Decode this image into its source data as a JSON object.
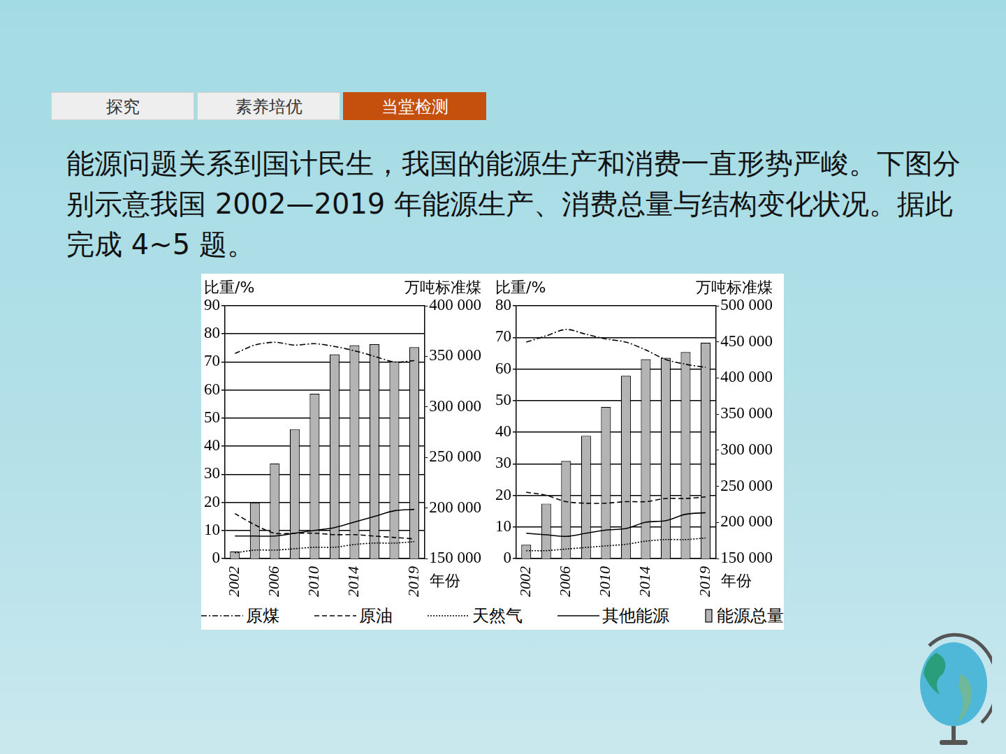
{
  "header": {
    "tabs": [
      "探究",
      "素养培优",
      "当堂检测"
    ],
    "active_tab": "当堂检测"
  },
  "question": "能源问题关系到国计民生，我国的能源生产和消费一直形势严峻。下图分别示意我国 2002—2019 年能源生产、消费总量与结构变化状况。据此完成 4~5 题。",
  "chart_data": [
    {
      "type": "bar",
      "categories": [
        "2002",
        null,
        "2006",
        null,
        "2010",
        null,
        "2014",
        null,
        null,
        "2019"
      ],
      "xlabel": "年份",
      "ylabel": "比重/%",
      "y2label": "万吨标准煤",
      "ylim": [
        0,
        90
      ],
      "yticks": [
        0,
        10,
        20,
        30,
        40,
        50,
        60,
        70,
        80,
        90
      ],
      "y2lim": [
        150000,
        400000
      ],
      "y2ticks": [
        {
          "value": 150000,
          "label": "150 000"
        },
        {
          "value": 200000,
          "label": "200 000"
        },
        {
          "value": 250000,
          "label": "250 000"
        },
        {
          "value": 300000,
          "label": "300 000"
        },
        {
          "value": 350000,
          "label": "350 000"
        },
        {
          "value": 400000,
          "label": "400 000"
        }
      ],
      "grid": true,
      "legend": "bottom",
      "series": [
        {
          "name": "原煤",
          "type": "line",
          "color": "#000000",
          "line_style": "dashdot",
          "marker": "none",
          "axis": "y",
          "values": [
            73,
            76,
            77,
            76,
            76.5,
            75.5,
            74,
            72,
            70,
            70.5
          ]
        },
        {
          "name": "原油",
          "type": "line",
          "color": "#000000",
          "line_style": "dashed",
          "marker": "none",
          "axis": "y",
          "values": [
            16,
            12,
            9,
            9,
            9,
            8.5,
            8.5,
            8,
            7.5,
            7
          ]
        },
        {
          "name": "天然气",
          "type": "line",
          "color": "#000000",
          "line_style": "dotted",
          "marker": "none",
          "axis": "y",
          "values": [
            2,
            3,
            3,
            3.5,
            4,
            4,
            5,
            5.5,
            5.5,
            6
          ]
        },
        {
          "name": "其他能源",
          "type": "line",
          "color": "#000000",
          "line_style": "solid",
          "marker": "none",
          "axis": "y",
          "values": [
            8,
            8,
            8,
            9,
            10,
            11,
            13,
            15,
            17,
            17.5
          ]
        },
        {
          "name": "能源总量",
          "type": "bar",
          "color": "#b4b4b4",
          "axis": "y2",
          "values": [
            157000,
            205000,
            244000,
            278000,
            313000,
            352000,
            361000,
            362000,
            345000,
            359000
          ]
        }
      ]
    },
    {
      "type": "bar",
      "categories": [
        "2002",
        null,
        "2006",
        null,
        "2010",
        null,
        "2014",
        null,
        null,
        "2019"
      ],
      "xlabel": "年份",
      "ylabel": "比重/%",
      "y2label": "万吨标准煤",
      "ylim": [
        0,
        80
      ],
      "yticks": [
        0,
        10,
        20,
        30,
        40,
        50,
        60,
        70,
        80
      ],
      "y2lim": [
        150000,
        500000
      ],
      "y2ticks": [
        {
          "value": 150000,
          "label": "150 000"
        },
        {
          "value": 200000,
          "label": "200 000"
        },
        {
          "value": 250000,
          "label": "250 000"
        },
        {
          "value": 300000,
          "label": "300 000"
        },
        {
          "value": 350000,
          "label": "350 000"
        },
        {
          "value": 400000,
          "label": "400 000"
        },
        {
          "value": 450000,
          "label": "450 000"
        },
        {
          "value": 500000,
          "label": "500 000"
        }
      ],
      "grid": true,
      "series": [
        {
          "name": "原煤",
          "type": "line",
          "color": "#000000",
          "line_style": "dashdot",
          "marker": "none",
          "axis": "y",
          "values": [
            68.5,
            70.5,
            72.5,
            71,
            69.5,
            68.5,
            66,
            63,
            61.5,
            60.5
          ]
        },
        {
          "name": "原油",
          "type": "line",
          "color": "#000000",
          "line_style": "dashed",
          "marker": "none",
          "axis": "y",
          "values": [
            21,
            20,
            18,
            17.5,
            17.5,
            18,
            18,
            19,
            19,
            19.5
          ]
        },
        {
          "name": "天然气",
          "type": "line",
          "color": "#000000",
          "line_style": "dotted",
          "marker": "none",
          "axis": "y",
          "values": [
            2.5,
            2.5,
            3,
            3.5,
            4,
            4.5,
            5.5,
            6,
            6,
            6.5
          ]
        },
        {
          "name": "其他能源",
          "type": "line",
          "color": "#000000",
          "line_style": "solid",
          "marker": "none",
          "axis": "y",
          "values": [
            8,
            7.5,
            7,
            8,
            9,
            9.5,
            11.5,
            12,
            14,
            14.5
          ]
        },
        {
          "name": "能源总量",
          "type": "bar",
          "color": "#b4b4b4",
          "axis": "y2",
          "values": [
            169000,
            226000,
            285000,
            320000,
            360000,
            403000,
            426000,
            428000,
            436000,
            449000
          ]
        }
      ]
    }
  ]
}
